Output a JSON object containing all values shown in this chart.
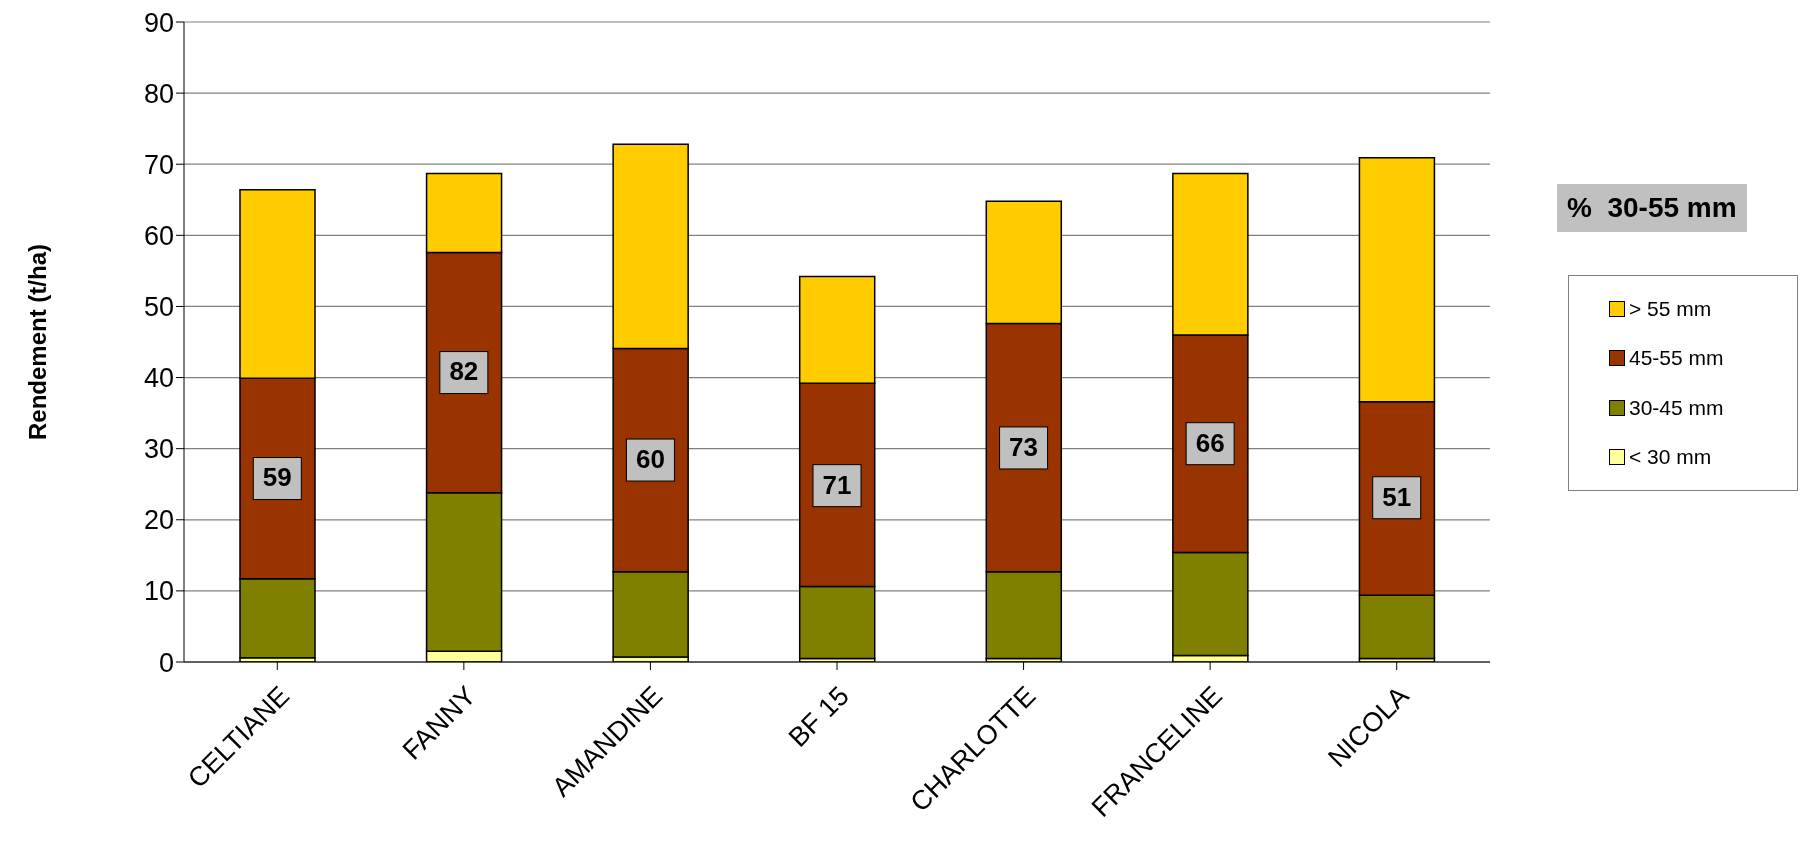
{
  "chart_data": {
    "type": "bar",
    "stacked": true,
    "ylabel": "Rendement (t/ha)",
    "categories": [
      "CELTIANE",
      "FANNY",
      "AMANDINE",
      "BF 15",
      "CHARLOTTE",
      "FRANCELINE",
      "NICOLA"
    ],
    "series": [
      {
        "name": "< 30 mm",
        "color": "#ffff99",
        "values": [
          0.6,
          1.5,
          0.7,
          0.5,
          0.5,
          0.9,
          0.5
        ]
      },
      {
        "name": "30-45 mm",
        "color": "#808000",
        "values": [
          11.1,
          22.3,
          12.0,
          10.1,
          12.2,
          14.5,
          8.9
        ]
      },
      {
        "name": "45-55 mm",
        "color": "#993300",
        "values": [
          28.2,
          33.8,
          31.4,
          28.6,
          34.9,
          30.6,
          27.2
        ]
      },
      {
        "name": "> 55 mm",
        "color": "#ffcc00",
        "values": [
          26.5,
          11.1,
          28.7,
          15.0,
          17.2,
          22.7,
          34.3
        ]
      }
    ],
    "annotations": [
      "%  30-55 mm",
      {
        "text": "59",
        "x": "CELTIANE",
        "y": 25.8
      },
      {
        "text": "82",
        "x": "FANNY",
        "y": 40.7
      },
      {
        "text": "60",
        "x": "AMANDINE",
        "y": 28.4
      },
      {
        "text": "71",
        "x": "BF 15",
        "y": 24.8
      },
      {
        "text": "73",
        "x": "CHARLOTTE",
        "y": 30.1
      },
      {
        "text": "66",
        "x": "FRANCELINE",
        "y": 30.7
      },
      {
        "text": "51",
        "x": "NICOLA",
        "y": 23.1
      }
    ],
    "ylim": [
      0,
      90
    ],
    "yticks": [
      0,
      10,
      20,
      30,
      40,
      50,
      60,
      70,
      80,
      90
    ],
    "grid": "y",
    "legend": "right"
  }
}
